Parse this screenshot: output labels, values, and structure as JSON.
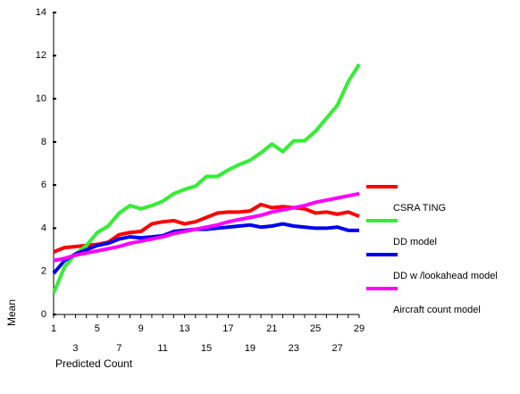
{
  "chart_data": {
    "type": "line",
    "x_label": "Predicted Count",
    "y_label": "Mean",
    "categories": [
      1,
      null,
      3,
      null,
      5,
      null,
      7,
      null,
      9,
      null,
      11,
      null,
      13,
      null,
      15,
      null,
      17,
      null,
      19,
      null,
      21,
      null,
      23,
      null,
      25,
      null,
      27,
      null,
      29
    ],
    "ylim": [
      0,
      14
    ],
    "yticks": [
      0,
      2,
      4,
      6,
      8,
      10,
      12,
      14
    ],
    "series": [
      {
        "name": "CSRA TING",
        "color": "#ff0000",
        "values": [
          2.9,
          3.1,
          3.15,
          3.2,
          3.25,
          3.35,
          3.7,
          3.8,
          3.85,
          4.2,
          4.3,
          4.35,
          4.2,
          4.3,
          4.5,
          4.7,
          4.75,
          4.75,
          4.8,
          5.1,
          4.95,
          5.0,
          4.95,
          4.9,
          4.7,
          4.75,
          4.65,
          4.75,
          4.55
        ]
      },
      {
        "name": "DD model",
        "color": "#33ee33",
        "values": [
          1.0,
          2.2,
          2.8,
          3.2,
          3.8,
          4.1,
          4.7,
          5.05,
          4.9,
          5.05,
          5.25,
          5.6,
          5.8,
          5.95,
          6.4,
          6.4,
          6.7,
          6.95,
          7.15,
          7.5,
          7.9,
          7.55,
          8.05,
          8.05,
          8.5,
          9.1,
          9.7,
          10.8,
          11.6
        ]
      },
      {
        "name": "DD w /lookahead model",
        "color": "#0000ee",
        "values": [
          1.9,
          2.5,
          2.8,
          3.0,
          3.2,
          3.3,
          3.5,
          3.6,
          3.55,
          3.6,
          3.65,
          3.85,
          3.9,
          3.95,
          3.95,
          4.0,
          4.05,
          4.1,
          4.15,
          4.05,
          4.1,
          4.2,
          4.1,
          4.05,
          4.0,
          4.0,
          4.05,
          3.9,
          3.9
        ]
      },
      {
        "name": "Aircraft count model",
        "color": "#ff00ff",
        "values": [
          2.5,
          2.6,
          2.75,
          2.85,
          2.95,
          3.05,
          3.15,
          3.3,
          3.4,
          3.5,
          3.6,
          3.75,
          3.85,
          3.95,
          4.05,
          4.15,
          4.3,
          4.4,
          4.5,
          4.6,
          4.75,
          4.85,
          4.95,
          5.05,
          5.2,
          5.3,
          5.4,
          5.5,
          5.6
        ]
      }
    ]
  }
}
